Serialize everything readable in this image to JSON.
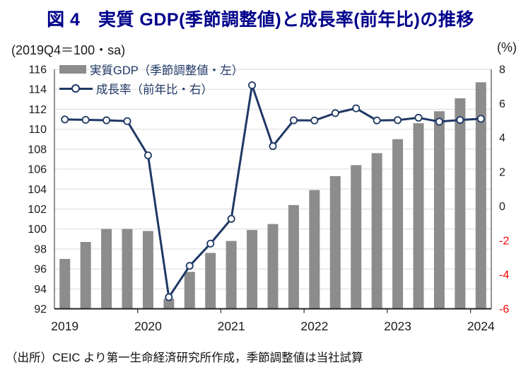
{
  "title": "図 4　実質 GDP(季節調整値)と成長率(前年比)の推移",
  "unit_left": "(2019Q4＝100・sa)",
  "unit_right": "(%)",
  "footer": "（出所）CEIC より第一生命経済研究所作成，季節調整値は当社試算",
  "colors": {
    "title": "#00008B",
    "bar": "#8C8C8C",
    "line": "#1F3864",
    "legend_text": "#1F3864",
    "grid": "#D9D9D9",
    "axis": "#262626",
    "axis_side": "#595959",
    "tick_text": "#1a1a1a",
    "negative_tick": "#FF0000"
  },
  "legend": [
    {
      "label": "実質GDP（季節調整値・左）",
      "type": "bar"
    },
    {
      "label": "成長率（前年比・右）",
      "type": "line"
    }
  ],
  "chart_data": {
    "type": "combo",
    "categories": [
      "2019Q1",
      "2019Q2",
      "2019Q3",
      "2019Q4",
      "2020Q1",
      "2020Q2",
      "2020Q3",
      "2020Q4",
      "2021Q1",
      "2021Q2",
      "2021Q3",
      "2021Q4",
      "2022Q1",
      "2022Q2",
      "2022Q3",
      "2022Q4",
      "2023Q1",
      "2023Q2",
      "2023Q3",
      "2023Q4",
      "2024Q1"
    ],
    "series": [
      {
        "name": "実質GDP（季節調整値・左）",
        "type": "bar",
        "axis": "left",
        "values": [
          97.0,
          98.7,
          100.0,
          100.0,
          99.8,
          93.0,
          95.7,
          97.6,
          98.8,
          99.9,
          100.5,
          102.4,
          103.9,
          105.3,
          106.4,
          107.6,
          109.0,
          110.6,
          111.8,
          113.1,
          114.7
        ]
      },
      {
        "name": "成長率（前年比・右）",
        "type": "line",
        "axis": "right",
        "marker": "open-circle",
        "values": [
          5.07,
          5.05,
          5.02,
          4.97,
          2.97,
          -5.32,
          -3.49,
          -2.19,
          -0.74,
          7.07,
          3.51,
          5.02,
          5.01,
          5.44,
          5.72,
          5.01,
          5.03,
          5.17,
          4.94,
          5.04,
          5.11
        ]
      }
    ],
    "left_axis": {
      "label": "(2019Q4＝100・sa)",
      "min": 92,
      "max": 116,
      "ticks": [
        116,
        114,
        112,
        110,
        108,
        106,
        104,
        102,
        100,
        98,
        96,
        94,
        92
      ]
    },
    "right_axis": {
      "label": "(%)",
      "min": -6,
      "max": 8,
      "ticks": [
        8,
        6,
        4,
        2,
        0,
        -2,
        -4,
        -6
      ]
    },
    "x_axis": {
      "year_labels": [
        "2019",
        "2020",
        "2021",
        "2022",
        "2023",
        "2024"
      ],
      "quarters_per_year": 4
    },
    "grid": true,
    "legend_position": "top-left"
  }
}
